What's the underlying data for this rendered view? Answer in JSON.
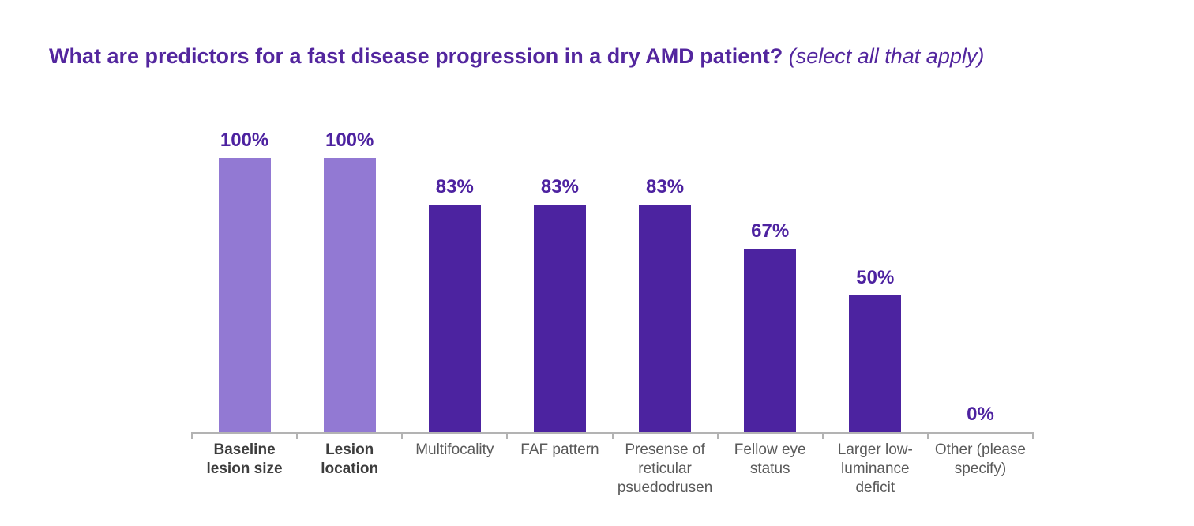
{
  "title": {
    "question": "What are predictors for a fast disease progression in a dry AMD patient?",
    "suffix": " (select all that apply)"
  },
  "colors": {
    "title_purple": "#53269e",
    "value_label_purple": "#4d22a0",
    "bar_dark": "#4c23a0",
    "bar_light": "#9279d3",
    "axis_gray": "#b3b3b3",
    "category_label_gray": "#595959",
    "category_label_emphasis": "#3d3d3d"
  },
  "chart_data": {
    "type": "bar",
    "title": "What are predictors for a fast disease progression in a dry AMD patient? (select all that apply)",
    "categories": [
      "Baseline lesion size",
      "Lesion location",
      "Multifocality",
      "FAF pattern",
      "Presense of reticular psuedodrusen",
      "Fellow eye status",
      "Larger low-luminance deficit",
      "Other (please specify)"
    ],
    "values": [
      100,
      100,
      83,
      83,
      83,
      67,
      50,
      0
    ],
    "value_labels": [
      "100%",
      "100%",
      "83%",
      "83%",
      "83%",
      "67%",
      "50%",
      "0%"
    ],
    "highlighted": [
      true,
      true,
      false,
      false,
      false,
      false,
      false,
      false
    ],
    "emphasized_category_labels": [
      true,
      true,
      false,
      false,
      false,
      false,
      false,
      false
    ],
    "xlabel": "",
    "ylabel": "",
    "ylim": [
      0,
      100
    ],
    "grid": false,
    "legend": false,
    "data_labels": true,
    "bar_color_default": "#4c23a0",
    "bar_color_highlight": "#9279d3"
  }
}
